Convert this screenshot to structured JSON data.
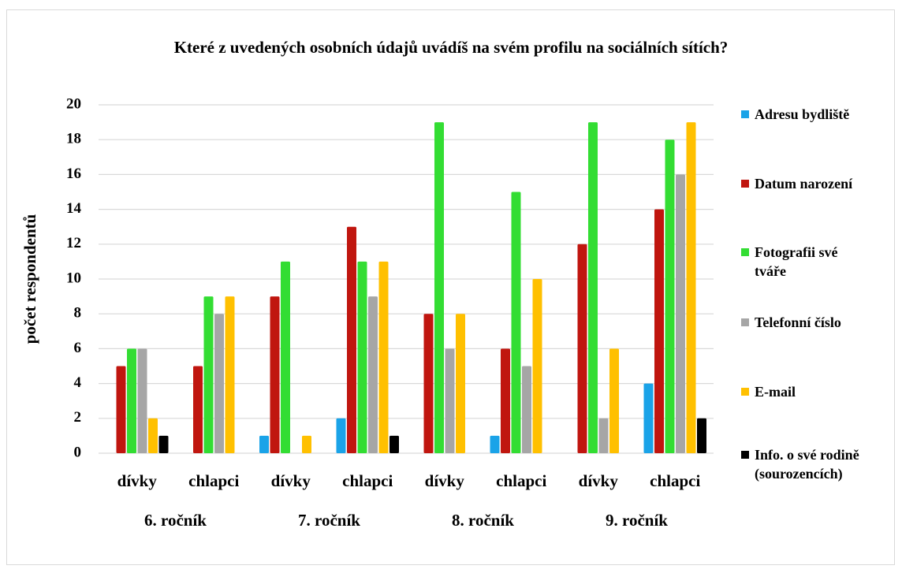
{
  "chart_data": {
    "type": "bar",
    "title": "Které z uvedených osobních údajů uvádíš na svém profilu na sociálních sítích?",
    "y_label": "počet respondentů",
    "categories": [
      "dívky",
      "chlapci",
      "dívky",
      "chlapci",
      "dívky",
      "chlapci",
      "dívky",
      "chlapci"
    ],
    "groups": [
      "6. ročník",
      "7. ročník",
      "8. ročník",
      "9. ročník"
    ],
    "series": [
      {
        "name": "Adresu bydliště",
        "color": "#1aa3e8",
        "values": [
          0,
          0,
          1,
          2,
          0,
          1,
          0,
          4
        ]
      },
      {
        "name": "Datum narození",
        "color": "#c0160f",
        "values": [
          5,
          5,
          9,
          13,
          8,
          6,
          12,
          14
        ]
      },
      {
        "name": "Fotografii své tváře",
        "color": "#33dd33",
        "values": [
          6,
          9,
          11,
          11,
          19,
          15,
          19,
          18
        ]
      },
      {
        "name": "Telefonní číslo",
        "color": "#a6a6a6",
        "values": [
          6,
          8,
          0,
          9,
          6,
          5,
          2,
          16
        ]
      },
      {
        "name": "E-mail",
        "color": "#ffc000",
        "values": [
          2,
          9,
          1,
          11,
          8,
          10,
          6,
          19
        ]
      },
      {
        "name": "Info. o své rodině (sourozencích)",
        "color": "#000000",
        "values": [
          1,
          0,
          0,
          1,
          0,
          0,
          0,
          2
        ]
      }
    ],
    "ylim": [
      0,
      20
    ],
    "yticks": [
      0,
      2,
      4,
      6,
      8,
      10,
      12,
      14,
      16,
      18,
      20
    ],
    "grid": true,
    "legend": "right"
  }
}
